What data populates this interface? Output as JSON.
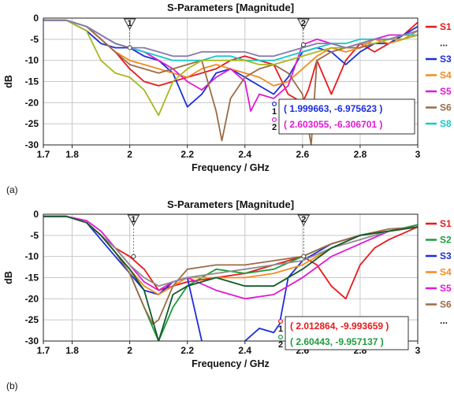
{
  "chart_data": [
    {
      "panel": "(a)",
      "type": "line",
      "title": "S-Parameters [Magnitude]",
      "xlabel": "Frequency / GHz",
      "ylabel": "dB",
      "xlim": [
        1.7,
        3.0
      ],
      "ylim": [
        -30,
        0
      ],
      "xticks": [
        "1.7",
        "1.8",
        "2",
        "2.2",
        "2.4",
        "2.6",
        "2.8",
        "3"
      ],
      "xtick_values": [
        1.7,
        1.8,
        2.0,
        2.2,
        2.4,
        2.6,
        2.8,
        3.0
      ],
      "yticks": [
        "0",
        "-5",
        "-10",
        "-15",
        "-20",
        "-25",
        "-30"
      ],
      "ytick_values": [
        0,
        -5,
        -10,
        -15,
        -20,
        -25,
        -30
      ],
      "grid": true,
      "legend_position": "right",
      "legend": [
        {
          "label": "S1",
          "color": "#e8191b"
        },
        {
          "label": "...",
          "color": ""
        },
        {
          "label": "S3",
          "color": "#1c2ed8"
        },
        {
          "label": "S4",
          "color": "#f58a1f"
        },
        {
          "label": "S5",
          "color": "#e019d6"
        },
        {
          "label": "S6",
          "color": "#9c6b45"
        },
        {
          "label": "S8",
          "color": "#19c8c8"
        }
      ],
      "markers": [
        {
          "label": "1",
          "x": 2.0,
          "y": -6.976
        },
        {
          "label": "2",
          "x": 2.603,
          "y": -6.307
        }
      ],
      "readouts": [
        {
          "index": "1",
          "text": "( 1.999663, -6.975623 )",
          "color": "#1c2ed8"
        },
        {
          "index": "2",
          "text": "( 2.603055, -6.306701 )",
          "color": "#e019d6"
        }
      ],
      "series": [
        {
          "color": "#e8191b",
          "x": [
            1.7,
            1.78,
            1.85,
            1.9,
            1.95,
            2.0,
            2.05,
            2.1,
            2.15,
            2.2,
            2.25,
            2.3,
            2.35,
            2.4,
            2.45,
            2.5,
            2.55,
            2.6,
            2.62,
            2.65,
            2.7,
            2.75,
            2.8,
            2.85,
            2.9,
            2.95,
            3.0
          ],
          "y": [
            -0.5,
            -0.5,
            -2,
            -5,
            -8,
            -12,
            -15,
            -16,
            -15,
            -14,
            -13,
            -12,
            -10,
            -9,
            -10,
            -11,
            -18,
            -20,
            -17,
            -10,
            -18,
            -10,
            -6,
            -8,
            -6,
            -4,
            -1
          ]
        },
        {
          "color": "#1c2ed8",
          "x": [
            1.7,
            1.78,
            1.85,
            1.9,
            1.95,
            2.0,
            2.05,
            2.1,
            2.15,
            2.2,
            2.25,
            2.3,
            2.35,
            2.4,
            2.45,
            2.5,
            2.55,
            2.6,
            2.65,
            2.7,
            2.75,
            2.8,
            2.85,
            2.9,
            2.95,
            3.0
          ],
          "y": [
            -0.5,
            -0.5,
            -3,
            -6,
            -7,
            -7,
            -9,
            -10,
            -13,
            -21,
            -18,
            -13,
            -12,
            -14,
            -16,
            -18,
            -14,
            -8,
            -7,
            -8,
            -11,
            -8,
            -6,
            -6,
            -4,
            -2
          ]
        },
        {
          "color": "#f58a1f",
          "x": [
            1.7,
            1.78,
            1.85,
            1.9,
            1.95,
            2.0,
            2.05,
            2.1,
            2.15,
            2.2,
            2.25,
            2.3,
            2.35,
            2.4,
            2.45,
            2.5,
            2.55,
            2.6,
            2.65,
            2.7,
            2.75,
            2.8,
            2.85,
            2.9,
            2.95,
            3.0
          ],
          "y": [
            -0.5,
            -0.5,
            -2,
            -5,
            -8,
            -10,
            -11,
            -12,
            -13,
            -14,
            -12,
            -11,
            -12,
            -13,
            -14,
            -16,
            -15,
            -12,
            -9,
            -7,
            -8,
            -7,
            -5,
            -6,
            -5,
            -3
          ]
        },
        {
          "color": "#e019d6",
          "x": [
            1.7,
            1.78,
            1.85,
            1.9,
            1.95,
            2.0,
            2.05,
            2.1,
            2.15,
            2.2,
            2.25,
            2.3,
            2.35,
            2.4,
            2.42,
            2.45,
            2.5,
            2.55,
            2.6,
            2.65,
            2.7,
            2.75,
            2.8,
            2.85,
            2.9,
            2.95,
            3.0
          ],
          "y": [
            -0.5,
            -0.5,
            -2,
            -4,
            -6,
            -7,
            -8,
            -10,
            -12,
            -15,
            -17,
            -14,
            -12,
            -15,
            -22,
            -18,
            -19,
            -16,
            -6.3,
            -5,
            -6,
            -7,
            -6,
            -5,
            -4,
            -4,
            -3
          ]
        },
        {
          "color": "#9c6b45",
          "x": [
            1.7,
            1.78,
            1.85,
            1.9,
            1.95,
            2.0,
            2.05,
            2.1,
            2.15,
            2.2,
            2.25,
            2.3,
            2.32,
            2.35,
            2.4,
            2.45,
            2.5,
            2.55,
            2.6,
            2.63,
            2.65,
            2.7,
            2.75,
            2.8,
            2.85,
            2.9,
            2.95,
            3.0
          ],
          "y": [
            -0.5,
            -0.5,
            -2,
            -5,
            -8,
            -11,
            -12,
            -13,
            -12,
            -11,
            -10,
            -22,
            -29,
            -19,
            -14,
            -12,
            -11,
            -13,
            -18,
            -30,
            -10,
            -8,
            -7,
            -7,
            -6,
            -5,
            -5,
            -4
          ]
        },
        {
          "color": "#19c8c8",
          "x": [
            1.7,
            1.78,
            1.85,
            1.9,
            1.95,
            2.0,
            2.05,
            2.1,
            2.15,
            2.2,
            2.25,
            2.3,
            2.35,
            2.4,
            2.45,
            2.5,
            2.55,
            2.6,
            2.65,
            2.7,
            2.75,
            2.8,
            2.85,
            2.9,
            2.95,
            3.0
          ],
          "y": [
            -0.5,
            -0.5,
            -2,
            -4,
            -6,
            -7,
            -8,
            -9,
            -10,
            -10,
            -10,
            -9,
            -9,
            -10,
            -10,
            -10,
            -9,
            -8,
            -7,
            -6,
            -6,
            -5,
            -5,
            -5,
            -4,
            -4
          ]
        },
        {
          "color": "#a8b820",
          "x": [
            1.7,
            1.78,
            1.85,
            1.9,
            1.95,
            2.0,
            2.05,
            2.1,
            2.15,
            2.2,
            2.25,
            2.3,
            2.35,
            2.4,
            2.45,
            2.5,
            2.55,
            2.6,
            2.65,
            2.7,
            2.75,
            2.8,
            2.85,
            2.9,
            2.95,
            3.0
          ],
          "y": [
            -0.5,
            -0.5,
            -3,
            -10,
            -13,
            -14,
            -17,
            -23,
            -15,
            -12,
            -10,
            -10,
            -10,
            -10,
            -11,
            -11,
            -10,
            -9,
            -8,
            -7,
            -7,
            -6,
            -6,
            -5,
            -5,
            -4
          ]
        },
        {
          "color": "#8a7aa8",
          "x": [
            1.7,
            1.78,
            1.85,
            1.9,
            1.95,
            2.0,
            2.05,
            2.1,
            2.15,
            2.2,
            2.25,
            2.3,
            2.35,
            2.4,
            2.45,
            2.5,
            2.55,
            2.6,
            2.65,
            2.7,
            2.75,
            2.8,
            2.85,
            2.9,
            2.95,
            3.0
          ],
          "y": [
            -0.5,
            -0.5,
            -2,
            -4,
            -6,
            -7,
            -7,
            -8,
            -9,
            -9,
            -8,
            -8,
            -8,
            -8,
            -9,
            -9,
            -8,
            -7,
            -6,
            -6,
            -7,
            -6,
            -5,
            -5,
            -4,
            -3
          ]
        }
      ]
    },
    {
      "panel": "(b)",
      "type": "line",
      "title": "S-Parameters [Magnitude]",
      "xlabel": "Frequency / GHz",
      "ylabel": "dB",
      "xlim": [
        1.7,
        3.0
      ],
      "ylim": [
        -30,
        0
      ],
      "xticks": [
        "1.7",
        "1.8",
        "2",
        "2.2",
        "2.4",
        "2.6",
        "2.8",
        "3"
      ],
      "xtick_values": [
        1.7,
        1.8,
        2.0,
        2.2,
        2.4,
        2.6,
        2.8,
        3.0
      ],
      "yticks": [
        "0",
        "-5",
        "-10",
        "-15",
        "-20",
        "-25",
        "-30"
      ],
      "ytick_values": [
        0,
        -5,
        -10,
        -15,
        -20,
        -25,
        -30
      ],
      "grid": true,
      "legend_position": "right",
      "legend": [
        {
          "label": "S1",
          "color": "#e8191b"
        },
        {
          "label": "S2",
          "color": "#1f9a3c"
        },
        {
          "label": "S3",
          "color": "#1c2ed8"
        },
        {
          "label": "S4",
          "color": "#f58a1f"
        },
        {
          "label": "S5",
          "color": "#e019d6"
        },
        {
          "label": "S6",
          "color": "#9c6b45"
        },
        {
          "label": "...",
          "color": ""
        }
      ],
      "markers": [
        {
          "label": "1",
          "x": 2.013,
          "y": -9.994
        },
        {
          "label": "2",
          "x": 2.604,
          "y": -9.957
        }
      ],
      "readouts": [
        {
          "index": "1",
          "text": "( 2.012864, -9.993659 )",
          "color": "#e8191b"
        },
        {
          "index": "2",
          "text": "( 2.60443, -9.957137 )",
          "color": "#1f9a3c"
        }
      ],
      "series": [
        {
          "color": "#e8191b",
          "x": [
            1.7,
            1.78,
            1.85,
            1.9,
            1.95,
            2.0,
            2.05,
            2.1,
            2.15,
            2.2,
            2.3,
            2.4,
            2.5,
            2.6,
            2.65,
            2.7,
            2.75,
            2.8,
            2.85,
            2.9,
            3.0
          ],
          "y": [
            -0.5,
            -0.5,
            -2,
            -5,
            -8,
            -10,
            -13,
            -18,
            -17,
            -16,
            -15,
            -14,
            -12,
            -10,
            -12,
            -17,
            -20,
            -12,
            -8,
            -6,
            -3
          ]
        },
        {
          "color": "#1f9a3c",
          "x": [
            1.7,
            1.78,
            1.85,
            1.9,
            1.95,
            2.0,
            2.05,
            2.1,
            2.15,
            2.2,
            2.3,
            2.4,
            2.5,
            2.6,
            2.7,
            2.8,
            2.9,
            3.0
          ],
          "y": [
            -0.5,
            -0.5,
            -2,
            -5,
            -9,
            -14,
            -22,
            -30,
            -22,
            -17,
            -13,
            -14,
            -13,
            -10,
            -7,
            -5,
            -4,
            -2.5
          ]
        },
        {
          "color": "#1c2ed8",
          "x": [
            1.7,
            1.78,
            1.85,
            1.9,
            1.95,
            2.0,
            2.05,
            2.1,
            2.15,
            2.2,
            2.25,
            2.3,
            2.35,
            2.4,
            2.45,
            2.5,
            2.52,
            2.55,
            2.6,
            2.7,
            2.8,
            2.9,
            3.0
          ],
          "y": [
            -0.5,
            -0.5,
            -2,
            -6,
            -10,
            -14,
            -18,
            -19,
            -16,
            -15,
            -30,
            -40,
            -40,
            -30,
            -27,
            -28,
            -26,
            -15,
            -11,
            -7,
            -5,
            -4,
            -3
          ]
        },
        {
          "color": "#f58a1f",
          "x": [
            1.7,
            1.78,
            1.85,
            1.9,
            1.95,
            2.0,
            2.05,
            2.1,
            2.15,
            2.2,
            2.3,
            2.4,
            2.5,
            2.6,
            2.7,
            2.8,
            2.9,
            3.0
          ],
          "y": [
            -0.5,
            -0.5,
            -2,
            -5,
            -9,
            -13,
            -17,
            -19,
            -17,
            -15,
            -15,
            -15,
            -14,
            -12,
            -8,
            -5,
            -4,
            -3
          ]
        },
        {
          "color": "#e019d6",
          "x": [
            1.7,
            1.78,
            1.85,
            1.9,
            1.95,
            2.0,
            2.05,
            2.1,
            2.15,
            2.2,
            2.3,
            2.4,
            2.5,
            2.6,
            2.7,
            2.8,
            2.9,
            3.0
          ],
          "y": [
            -0.5,
            -0.5,
            -1.5,
            -4,
            -8,
            -12,
            -16,
            -18,
            -16,
            -15,
            -18,
            -20,
            -19,
            -15,
            -10,
            -7,
            -4,
            -3
          ]
        },
        {
          "color": "#9c6b45",
          "x": [
            1.7,
            1.78,
            1.85,
            1.9,
            1.95,
            2.0,
            2.05,
            2.08,
            2.1,
            2.15,
            2.2,
            2.3,
            2.4,
            2.5,
            2.6,
            2.7,
            2.8,
            2.9,
            3.0
          ],
          "y": [
            -0.5,
            -0.5,
            -2,
            -5,
            -9,
            -14,
            -22,
            -26,
            -25,
            -17,
            -13,
            -12,
            -12,
            -11,
            -10,
            -7,
            -5,
            -3.5,
            -3
          ]
        },
        {
          "color": "#8c8c8c",
          "x": [
            1.7,
            1.78,
            1.85,
            1.9,
            1.95,
            2.0,
            2.05,
            2.1,
            2.15,
            2.2,
            2.3,
            2.4,
            2.5,
            2.6,
            2.7,
            2.8,
            2.9,
            3.0
          ],
          "y": [
            -0.5,
            -0.5,
            -2,
            -5,
            -8,
            -12,
            -15,
            -17,
            -16,
            -15,
            -14,
            -13,
            -12,
            -11,
            -8,
            -6,
            -4,
            -3
          ]
        },
        {
          "color": "#0f5a2a",
          "x": [
            1.7,
            1.78,
            1.85,
            1.9,
            1.95,
            2.0,
            2.05,
            2.1,
            2.15,
            2.2,
            2.3,
            2.4,
            2.5,
            2.6,
            2.7,
            2.8,
            2.9,
            3.0
          ],
          "y": [
            -0.5,
            -0.5,
            -2,
            -5,
            -9,
            -13,
            -18,
            -30,
            -19,
            -17,
            -15,
            -17,
            -17,
            -13,
            -8,
            -5,
            -4,
            -3
          ]
        }
      ]
    }
  ]
}
